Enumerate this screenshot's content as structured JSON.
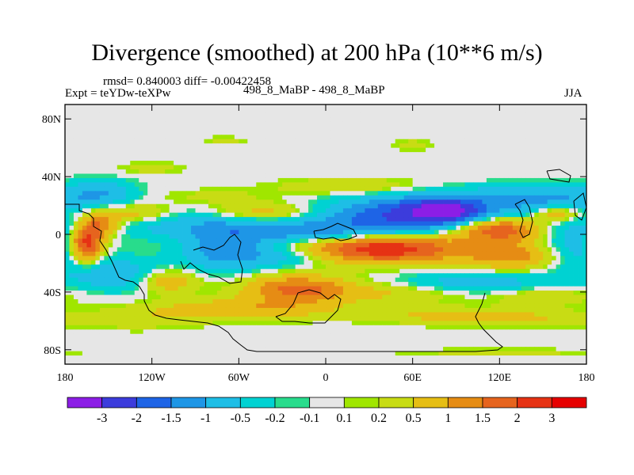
{
  "title": "Divergence (smoothed) at 200 hPa (10**6 m/s)",
  "stats": "rmsd= 0.840003 diff= -0.00422458",
  "expt": "Expt = teYDw-teXPw",
  "comparison": "498_8_MaBP - 498_8_MaBP",
  "season": "JJA",
  "chart_data": {
    "type": "heatmap",
    "title": "Divergence (smoothed) at 200 hPa (10**6 m/s)",
    "xlabel": "",
    "ylabel": "",
    "x_ticks": [
      {
        "value": -180,
        "label": "180"
      },
      {
        "value": -120,
        "label": "120W"
      },
      {
        "value": -60,
        "label": "60W"
      },
      {
        "value": 0,
        "label": "0"
      },
      {
        "value": 60,
        "label": "60E"
      },
      {
        "value": 120,
        "label": "120E"
      },
      {
        "value": 180,
        "label": "180"
      }
    ],
    "y_ticks": [
      {
        "value": 80,
        "label": "80N"
      },
      {
        "value": 40,
        "label": "40N"
      },
      {
        "value": 0,
        "label": "0"
      },
      {
        "value": -40,
        "label": "40S"
      },
      {
        "value": -80,
        "label": "80S"
      }
    ],
    "xlim": [
      -180,
      180
    ],
    "ylim": [
      -90,
      90
    ],
    "colorbar": {
      "levels": [
        "-3",
        "-2",
        "-1.5",
        "-1",
        "-0.5",
        "-0.2",
        "-0.1",
        "0.1",
        "0.2",
        "0.5",
        "1",
        "1.5",
        "2",
        "3"
      ],
      "colors": [
        "#8c1ee6",
        "#3c3cdc",
        "#1e64e6",
        "#1e96e6",
        "#1ebee6",
        "#00d2d2",
        "#28dc8c",
        "#e6e6e6",
        "#a0e600",
        "#c8dc14",
        "#e6be14",
        "#e68c14",
        "#e6641e",
        "#e63214",
        "#e60000"
      ]
    },
    "features": [
      {
        "lon": -5,
        "lat": 8,
        "v": -1.2,
        "sx": 120,
        "sy": 7
      },
      {
        "lon": 150,
        "lat": 25,
        "v": -1.0,
        "sx": 45,
        "sy": 6
      },
      {
        "lon": 65,
        "lat": 17,
        "v": -1.6,
        "sx": 40,
        "sy": 8
      },
      {
        "lon": 80,
        "lat": 16,
        "v": -2.8,
        "sx": 14,
        "sy": 4
      },
      {
        "lon": -40,
        "lat": 14,
        "v": 1.3,
        "sx": 30,
        "sy": 5
      },
      {
        "lon": -130,
        "lat": 14,
        "v": 1.0,
        "sx": 18,
        "sy": 5
      },
      {
        "lon": 20,
        "lat": 33,
        "v": 0.6,
        "sx": 35,
        "sy": 4
      },
      {
        "lon": -80,
        "lat": 26,
        "v": 0.3,
        "sx": 30,
        "sy": 4
      },
      {
        "lon": 120,
        "lat": 4,
        "v": 2.4,
        "sx": 22,
        "sy": 6
      },
      {
        "lon": 160,
        "lat": 14,
        "v": 1.2,
        "sx": 12,
        "sy": 4
      },
      {
        "lon": -155,
        "lat": 7,
        "v": 1.6,
        "sx": 10,
        "sy": 6
      },
      {
        "lon": -165,
        "lat": -6,
        "v": 2.6,
        "sx": 8,
        "sy": 9
      },
      {
        "lon": 40,
        "lat": -10,
        "v": 2.4,
        "sx": 40,
        "sy": 7
      },
      {
        "lon": 130,
        "lat": -15,
        "v": 1.2,
        "sx": 22,
        "sy": 7
      },
      {
        "lon": 175,
        "lat": -8,
        "v": -0.8,
        "sx": 20,
        "sy": 12
      },
      {
        "lon": -10,
        "lat": 0,
        "v": -0.8,
        "sx": 35,
        "sy": 4
      },
      {
        "lon": -70,
        "lat": -10,
        "v": -1.3,
        "sx": 20,
        "sy": 10
      },
      {
        "lon": -30,
        "lat": -15,
        "v": -0.8,
        "sx": 25,
        "sy": 6
      },
      {
        "lon": -140,
        "lat": -28,
        "v": -0.9,
        "sx": 25,
        "sy": 8
      },
      {
        "lon": 105,
        "lat": -35,
        "v": -1.0,
        "sx": 40,
        "sy": 6
      },
      {
        "lon": -20,
        "lat": -38,
        "v": 1.6,
        "sx": 25,
        "sy": 7
      },
      {
        "lon": -110,
        "lat": -32,
        "v": 1.1,
        "sx": 15,
        "sy": 6
      },
      {
        "lon": 60,
        "lat": -40,
        "v": 0.7,
        "sx": 45,
        "sy": 5
      },
      {
        "lon": 150,
        "lat": -42,
        "v": 0.6,
        "sx": 25,
        "sy": 5
      },
      {
        "lon": -60,
        "lat": -52,
        "v": 0.9,
        "sx": 45,
        "sy": 5
      },
      {
        "lon": 120,
        "lat": -58,
        "v": 0.6,
        "sx": 45,
        "sy": 4
      },
      {
        "lon": 70,
        "lat": -55,
        "v": 0.3,
        "sx": 40,
        "sy": 4
      },
      {
        "lon": -130,
        "lat": -60,
        "v": 0.3,
        "sx": 30,
        "sy": 5
      },
      {
        "lon": 120,
        "lat": -82,
        "v": 0.3,
        "sx": 50,
        "sy": 2
      },
      {
        "lon": 60,
        "lat": 62,
        "v": 0.3,
        "sx": 10,
        "sy": 3
      },
      {
        "lon": -70,
        "lat": 65,
        "v": 0.3,
        "sx": 10,
        "sy": 2
      },
      {
        "lon": -120,
        "lat": 46,
        "v": 0.35,
        "sx": 15,
        "sy": 3
      },
      {
        "lon": -155,
        "lat": 30,
        "v": -0.7,
        "sx": 15,
        "sy": 6
      }
    ]
  }
}
